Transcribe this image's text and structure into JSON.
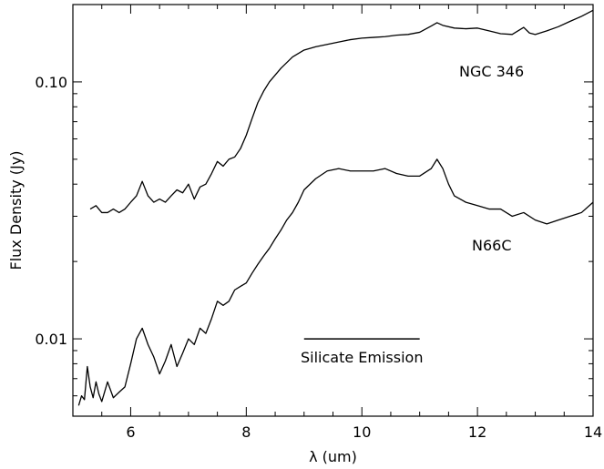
{
  "chart_data": {
    "type": "line",
    "xlabel": "λ (um)",
    "ylabel": "Flux Density (Jy)",
    "xlim": [
      5.0,
      14.0
    ],
    "ylim": [
      0.005,
      0.2
    ],
    "yscale": "log",
    "grid": false,
    "xticks": [
      6,
      8,
      10,
      12,
      14
    ],
    "xtick_labels": [
      "6",
      "8",
      "10",
      "12",
      "14"
    ],
    "yticks": [
      0.01,
      0.1
    ],
    "ytick_labels": [
      "0.01",
      "0.10"
    ],
    "series": [
      {
        "name": "NGC 346",
        "x": [
          5.3,
          5.4,
          5.5,
          5.6,
          5.7,
          5.8,
          5.9,
          6.0,
          6.1,
          6.2,
          6.3,
          6.4,
          6.5,
          6.6,
          6.7,
          6.8,
          6.9,
          7.0,
          7.1,
          7.2,
          7.3,
          7.4,
          7.5,
          7.6,
          7.7,
          7.8,
          7.9,
          8.0,
          8.1,
          8.2,
          8.3,
          8.4,
          8.6,
          8.8,
          9.0,
          9.2,
          9.4,
          9.6,
          9.8,
          10.0,
          10.2,
          10.4,
          10.6,
          10.8,
          11.0,
          11.2,
          11.3,
          11.4,
          11.6,
          11.8,
          12.0,
          12.2,
          12.4,
          12.6,
          12.8,
          12.9,
          13.0,
          13.2,
          13.4,
          13.6,
          13.8,
          14.0
        ],
        "values": [
          0.032,
          0.033,
          0.031,
          0.031,
          0.032,
          0.031,
          0.032,
          0.034,
          0.036,
          0.041,
          0.036,
          0.034,
          0.035,
          0.034,
          0.036,
          0.038,
          0.037,
          0.04,
          0.035,
          0.039,
          0.04,
          0.044,
          0.049,
          0.047,
          0.05,
          0.051,
          0.055,
          0.062,
          0.072,
          0.083,
          0.092,
          0.1,
          0.113,
          0.125,
          0.133,
          0.137,
          0.14,
          0.143,
          0.146,
          0.148,
          0.149,
          0.15,
          0.152,
          0.153,
          0.156,
          0.165,
          0.17,
          0.166,
          0.162,
          0.161,
          0.162,
          0.158,
          0.154,
          0.153,
          0.163,
          0.155,
          0.153,
          0.158,
          0.164,
          0.172,
          0.18,
          0.19
        ]
      },
      {
        "name": "N66C",
        "x": [
          5.1,
          5.15,
          5.2,
          5.25,
          5.3,
          5.35,
          5.4,
          5.45,
          5.5,
          5.6,
          5.7,
          5.8,
          5.9,
          6.0,
          6.1,
          6.2,
          6.3,
          6.4,
          6.5,
          6.6,
          6.7,
          6.8,
          6.9,
          7.0,
          7.1,
          7.2,
          7.3,
          7.4,
          7.5,
          7.6,
          7.7,
          7.8,
          7.9,
          8.0,
          8.1,
          8.2,
          8.3,
          8.4,
          8.5,
          8.6,
          8.7,
          8.8,
          8.9,
          9.0,
          9.2,
          9.4,
          9.6,
          9.8,
          10.0,
          10.2,
          10.4,
          10.6,
          10.8,
          11.0,
          11.2,
          11.3,
          11.4,
          11.5,
          11.6,
          11.8,
          12.0,
          12.2,
          12.4,
          12.6,
          12.8,
          13.0,
          13.2,
          13.4,
          13.6,
          13.8,
          14.0
        ],
        "values": [
          0.0055,
          0.006,
          0.0058,
          0.0078,
          0.0065,
          0.0059,
          0.0068,
          0.0061,
          0.0057,
          0.0068,
          0.0059,
          0.0062,
          0.0065,
          0.008,
          0.01,
          0.011,
          0.0095,
          0.0085,
          0.0073,
          0.0082,
          0.0095,
          0.0078,
          0.0088,
          0.01,
          0.0095,
          0.011,
          0.0105,
          0.012,
          0.014,
          0.0135,
          0.014,
          0.0155,
          0.016,
          0.0165,
          0.018,
          0.0195,
          0.021,
          0.0225,
          0.0245,
          0.0265,
          0.029,
          0.031,
          0.034,
          0.038,
          0.042,
          0.045,
          0.046,
          0.045,
          0.045,
          0.045,
          0.046,
          0.044,
          0.043,
          0.043,
          0.046,
          0.05,
          0.046,
          0.04,
          0.036,
          0.034,
          0.033,
          0.032,
          0.032,
          0.03,
          0.031,
          0.029,
          0.028,
          0.029,
          0.03,
          0.031,
          0.034
        ]
      }
    ],
    "annotations": [
      {
        "text": "Silicate Emission",
        "x_start": 9.0,
        "x_end": 11.0,
        "y": 0.01
      }
    ]
  }
}
